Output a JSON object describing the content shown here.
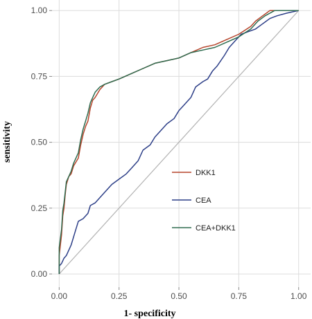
{
  "chart_data": {
    "type": "line",
    "xlabel": "1- specificity",
    "ylabel": "sensitivity",
    "xlim": [
      -0.03,
      1.05
    ],
    "ylim": [
      -0.05,
      1.04
    ],
    "x_ticks": [
      0.0,
      0.25,
      0.5,
      0.75,
      1.0
    ],
    "x_tick_labels": [
      "0.00",
      "0.25",
      "0.50",
      "0.75",
      "1.00"
    ],
    "y_ticks": [
      0.0,
      0.25,
      0.5,
      0.75,
      1.0
    ],
    "y_tick_labels": [
      "0.00",
      "0.25",
      "0.50",
      "0.75",
      "1.00"
    ],
    "grid": true,
    "reference_line": [
      [
        0,
        0
      ],
      [
        1,
        1
      ]
    ],
    "legend_position": "inside-right",
    "series": [
      {
        "name": "DKK1",
        "color": "#b5432a",
        "points": [
          [
            0,
            0
          ],
          [
            0,
            0.07
          ],
          [
            0.01,
            0.15
          ],
          [
            0.015,
            0.22
          ],
          [
            0.02,
            0.25
          ],
          [
            0.025,
            0.3
          ],
          [
            0.03,
            0.34
          ],
          [
            0.04,
            0.37
          ],
          [
            0.05,
            0.38
          ],
          [
            0.06,
            0.41
          ],
          [
            0.08,
            0.44
          ],
          [
            0.09,
            0.49
          ],
          [
            0.1,
            0.53
          ],
          [
            0.11,
            0.56
          ],
          [
            0.12,
            0.58
          ],
          [
            0.13,
            0.63
          ],
          [
            0.14,
            0.66
          ],
          [
            0.15,
            0.67
          ],
          [
            0.17,
            0.7
          ],
          [
            0.19,
            0.72
          ],
          [
            0.22,
            0.73
          ],
          [
            0.25,
            0.74
          ],
          [
            0.3,
            0.76
          ],
          [
            0.35,
            0.78
          ],
          [
            0.4,
            0.8
          ],
          [
            0.45,
            0.81
          ],
          [
            0.5,
            0.82
          ],
          [
            0.55,
            0.84
          ],
          [
            0.6,
            0.86
          ],
          [
            0.65,
            0.87
          ],
          [
            0.7,
            0.89
          ],
          [
            0.75,
            0.91
          ],
          [
            0.8,
            0.94
          ],
          [
            0.82,
            0.96
          ],
          [
            0.85,
            0.98
          ],
          [
            0.88,
            1.0
          ],
          [
            1.0,
            1.0
          ]
        ]
      },
      {
        "name": "CEA",
        "color": "#2c3e87",
        "points": [
          [
            0,
            0
          ],
          [
            0,
            0.03
          ],
          [
            0.01,
            0.04
          ],
          [
            0.02,
            0.06
          ],
          [
            0.03,
            0.07
          ],
          [
            0.05,
            0.11
          ],
          [
            0.07,
            0.17
          ],
          [
            0.08,
            0.2
          ],
          [
            0.1,
            0.21
          ],
          [
            0.12,
            0.23
          ],
          [
            0.13,
            0.26
          ],
          [
            0.15,
            0.27
          ],
          [
            0.18,
            0.3
          ],
          [
            0.2,
            0.32
          ],
          [
            0.22,
            0.34
          ],
          [
            0.25,
            0.36
          ],
          [
            0.28,
            0.38
          ],
          [
            0.3,
            0.4
          ],
          [
            0.33,
            0.43
          ],
          [
            0.35,
            0.47
          ],
          [
            0.38,
            0.49
          ],
          [
            0.4,
            0.52
          ],
          [
            0.42,
            0.54
          ],
          [
            0.45,
            0.57
          ],
          [
            0.48,
            0.59
          ],
          [
            0.5,
            0.62
          ],
          [
            0.52,
            0.64
          ],
          [
            0.55,
            0.67
          ],
          [
            0.57,
            0.71
          ],
          [
            0.6,
            0.73
          ],
          [
            0.62,
            0.74
          ],
          [
            0.64,
            0.77
          ],
          [
            0.66,
            0.79
          ],
          [
            0.69,
            0.83
          ],
          [
            0.71,
            0.86
          ],
          [
            0.73,
            0.88
          ],
          [
            0.76,
            0.91
          ],
          [
            0.79,
            0.92
          ],
          [
            0.82,
            0.93
          ],
          [
            0.85,
            0.95
          ],
          [
            0.88,
            0.97
          ],
          [
            0.91,
            0.98
          ],
          [
            0.95,
            0.99
          ],
          [
            1.0,
            1.0
          ]
        ]
      },
      {
        "name": "CEA+DKK1",
        "color": "#2e6b4f",
        "points": [
          [
            0,
            0
          ],
          [
            0,
            0.1
          ],
          [
            0.01,
            0.17
          ],
          [
            0.015,
            0.24
          ],
          [
            0.02,
            0.27
          ],
          [
            0.025,
            0.31
          ],
          [
            0.03,
            0.35
          ],
          [
            0.04,
            0.37
          ],
          [
            0.05,
            0.39
          ],
          [
            0.06,
            0.42
          ],
          [
            0.08,
            0.46
          ],
          [
            0.09,
            0.51
          ],
          [
            0.1,
            0.55
          ],
          [
            0.11,
            0.58
          ],
          [
            0.12,
            0.61
          ],
          [
            0.13,
            0.65
          ],
          [
            0.14,
            0.67
          ],
          [
            0.15,
            0.69
          ],
          [
            0.17,
            0.71
          ],
          [
            0.19,
            0.72
          ],
          [
            0.22,
            0.73
          ],
          [
            0.25,
            0.74
          ],
          [
            0.3,
            0.76
          ],
          [
            0.35,
            0.78
          ],
          [
            0.4,
            0.8
          ],
          [
            0.45,
            0.81
          ],
          [
            0.5,
            0.82
          ],
          [
            0.55,
            0.84
          ],
          [
            0.6,
            0.85
          ],
          [
            0.65,
            0.86
          ],
          [
            0.7,
            0.88
          ],
          [
            0.75,
            0.9
          ],
          [
            0.8,
            0.93
          ],
          [
            0.83,
            0.96
          ],
          [
            0.86,
            0.98
          ],
          [
            0.9,
            1.0
          ],
          [
            1.0,
            1.0
          ]
        ]
      }
    ]
  }
}
